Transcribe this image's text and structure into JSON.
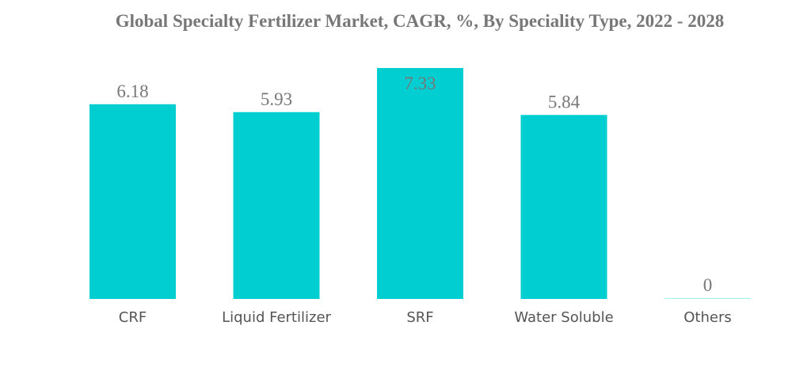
{
  "chart_data": {
    "type": "bar",
    "title": "Global Specialty Fertilizer Market, CAGR, %, By Speciality Type, 2022 - 2028",
    "categories": [
      "CRF",
      "Liquid Fertilizer",
      "SRF",
      "Water Soluble",
      "Others"
    ],
    "values": [
      6.18,
      5.93,
      7.33,
      5.84,
      0
    ],
    "value_labels": [
      "6.18",
      "5.93",
      "7.33",
      "5.84",
      "0"
    ],
    "xlabel": "",
    "ylabel": "",
    "ylim": [
      0,
      7.33
    ],
    "grid": false,
    "bar_color": "#00CED1",
    "label_color": "#777777"
  }
}
